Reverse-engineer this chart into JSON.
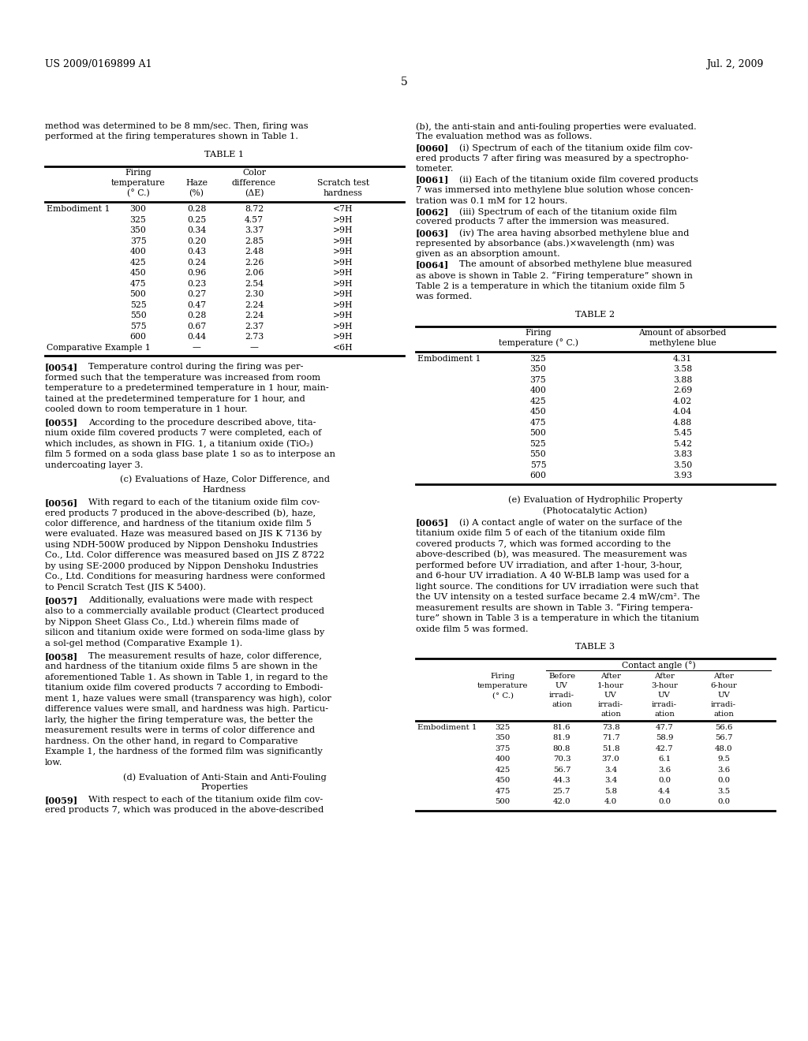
{
  "header_left": "US 2009/0169899 A1",
  "header_right": "Jul. 2, 2009",
  "page_number": "5",
  "bg_color": "#ffffff",
  "table1": {
    "rows": [
      [
        "Embodiment 1",
        "300",
        "0.28",
        "8.72",
        "<7H"
      ],
      [
        "",
        "325",
        "0.25",
        "4.57",
        ">9H"
      ],
      [
        "",
        "350",
        "0.34",
        "3.37",
        ">9H"
      ],
      [
        "",
        "375",
        "0.20",
        "2.85",
        ">9H"
      ],
      [
        "",
        "400",
        "0.43",
        "2.48",
        ">9H"
      ],
      [
        "",
        "425",
        "0.24",
        "2.26",
        ">9H"
      ],
      [
        "",
        "450",
        "0.96",
        "2.06",
        ">9H"
      ],
      [
        "",
        "475",
        "0.23",
        "2.54",
        ">9H"
      ],
      [
        "",
        "500",
        "0.27",
        "2.30",
        ">9H"
      ],
      [
        "",
        "525",
        "0.47",
        "2.24",
        ">9H"
      ],
      [
        "",
        "550",
        "0.28",
        "2.24",
        ">9H"
      ],
      [
        "",
        "575",
        "0.67",
        "2.37",
        ">9H"
      ],
      [
        "",
        "600",
        "0.44",
        "2.73",
        ">9H"
      ],
      [
        "Comparative Example 1",
        "",
        "—",
        "—",
        "<6H"
      ]
    ]
  },
  "table2": {
    "rows": [
      [
        "Embodiment 1",
        "325",
        "4.31"
      ],
      [
        "",
        "350",
        "3.58"
      ],
      [
        "",
        "375",
        "3.88"
      ],
      [
        "",
        "400",
        "2.69"
      ],
      [
        "",
        "425",
        "4.02"
      ],
      [
        "",
        "450",
        "4.04"
      ],
      [
        "",
        "475",
        "4.88"
      ],
      [
        "",
        "500",
        "5.45"
      ],
      [
        "",
        "525",
        "5.42"
      ],
      [
        "",
        "550",
        "3.83"
      ],
      [
        "",
        "575",
        "3.50"
      ],
      [
        "",
        "600",
        "3.93"
      ]
    ]
  },
  "table3": {
    "rows": [
      [
        "Embodiment 1",
        "325",
        "81.6",
        "73.8",
        "47.7",
        "56.6"
      ],
      [
        "",
        "350",
        "81.9",
        "71.7",
        "58.9",
        "56.7"
      ],
      [
        "",
        "375",
        "80.8",
        "51.8",
        "42.7",
        "48.0"
      ],
      [
        "",
        "400",
        "70.3",
        "37.0",
        "6.1",
        "9.5"
      ],
      [
        "",
        "425",
        "56.7",
        "3.4",
        "3.6",
        "3.6"
      ],
      [
        "",
        "450",
        "44.3",
        "3.4",
        "0.0",
        "0.0"
      ],
      [
        "",
        "475",
        "25.7",
        "5.8",
        "4.4",
        "3.5"
      ],
      [
        "",
        "500",
        "42.0",
        "4.0",
        "0.0",
        "0.0"
      ]
    ]
  }
}
